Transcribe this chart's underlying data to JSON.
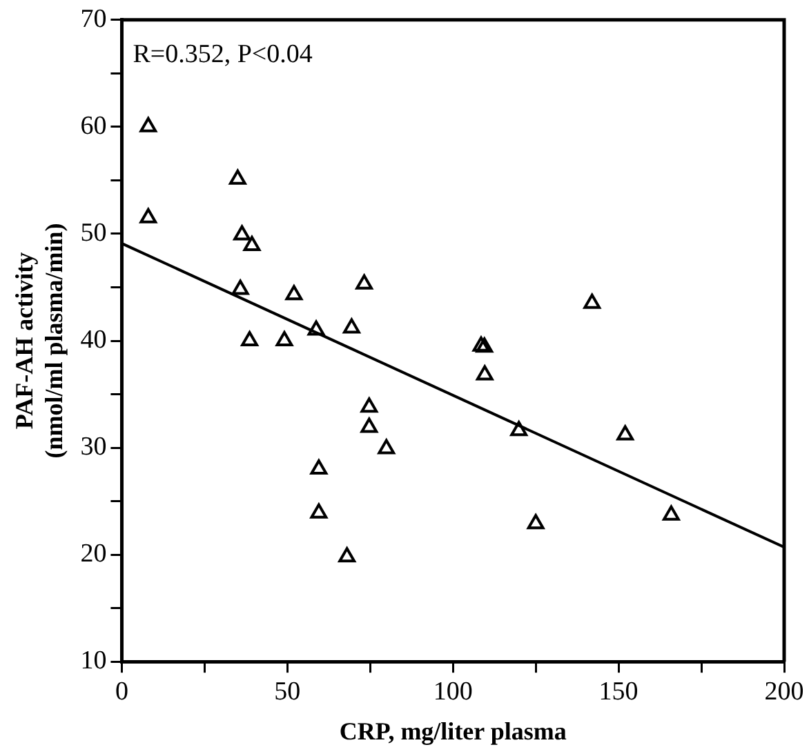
{
  "chart_data": {
    "type": "scatter",
    "xlabel": "CRP, mg/liter plasma",
    "ylabel": [
      "PAF-AH activity",
      "(nmol/ml plasma/min)"
    ],
    "annotations": [
      "R=0.352, P<0.04"
    ],
    "xlim": [
      0,
      200
    ],
    "xticks": [
      0,
      {
        "value": 25,
        "label": null
      },
      50,
      {
        "value": 75,
        "label": null
      },
      100,
      {
        "value": 125,
        "label": null
      },
      150,
      {
        "value": 175,
        "label": null
      },
      200
    ],
    "ylim": [
      10,
      70
    ],
    "yticks": [
      10,
      {
        "value": 15,
        "label": null
      },
      20,
      {
        "value": 25,
        "label": null
      },
      30,
      {
        "value": 35,
        "label": null
      },
      40,
      {
        "value": 45,
        "label": null
      },
      50,
      {
        "value": 55,
        "label": null
      },
      60,
      {
        "value": 65,
        "label": null
      },
      70
    ],
    "grid": false,
    "legend": false,
    "marker": "triangle",
    "series": [
      {
        "type": "scatter",
        "color": "#000000",
        "x": [
          8,
          8,
          35,
          36.3,
          39.3,
          35.8,
          52,
          73.2,
          58.7,
          69.4,
          38.6,
          49.1,
          74.7,
          74.7,
          79.9,
          59.5,
          59.5,
          68,
          142,
          108.5,
          109.5,
          109.6,
          119.9,
          152,
          125,
          165.9
        ],
        "values": [
          60,
          51.5,
          55.1,
          49.9,
          48.9,
          44.8,
          44.3,
          45.3,
          41,
          41.2,
          40,
          40,
          33.8,
          31.9,
          29.9,
          28,
          23.9,
          19.8,
          43.5,
          39.5,
          39.4,
          36.8,
          31.6,
          31.2,
          22.9,
          23.7
        ]
      },
      {
        "type": "line",
        "color": "#000000",
        "x": [
          0,
          200
        ],
        "values": [
          49.1,
          20.7
        ],
        "marker": "none",
        "line_style": "solid"
      }
    ]
  }
}
